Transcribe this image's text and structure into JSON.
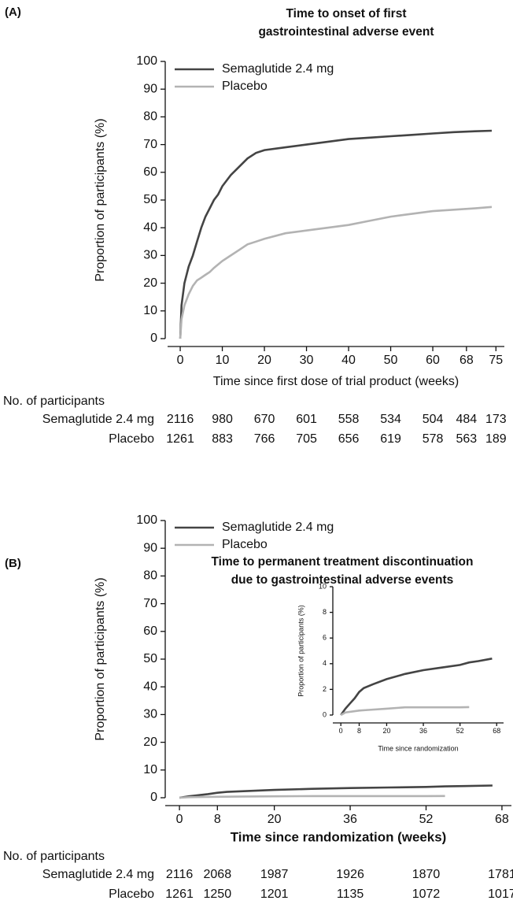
{
  "chart_data": [
    {
      "type": "line",
      "panel_label": "(A)",
      "title": [
        "Time to onset of first",
        "gastrointestinal adverse event"
      ],
      "xlabel": "Time since first dose of trial product (weeks)",
      "ylabel": "Proportion of participants (%)",
      "xlim": [
        -3,
        77
      ],
      "xticks": [
        0,
        10,
        20,
        30,
        40,
        50,
        60,
        68,
        75
      ],
      "ylim": [
        0,
        100
      ],
      "yticks": [
        0,
        10,
        20,
        30,
        40,
        50,
        60,
        70,
        80,
        90,
        100
      ],
      "legend": "upper left",
      "series": [
        {
          "name": "Semaglutide 2.4 mg",
          "color": "#444444",
          "x": [
            0,
            0.3,
            1,
            2,
            3,
            4,
            5,
            6,
            7,
            8,
            9,
            10,
            12,
            14,
            16,
            18,
            20,
            25,
            30,
            35,
            40,
            45,
            50,
            55,
            60,
            65,
            70,
            74
          ],
          "values": [
            0,
            12,
            20,
            26,
            30,
            35,
            40,
            44,
            47,
            50,
            52,
            55,
            59,
            62,
            65,
            67,
            68,
            69,
            70,
            71,
            72,
            72.5,
            73,
            73.5,
            74,
            74.5,
            74.8,
            75
          ]
        },
        {
          "name": "Placebo",
          "color": "#b3b3b3",
          "x": [
            0,
            0.3,
            1,
            2,
            3,
            4,
            5,
            6,
            7,
            8,
            10,
            12,
            14,
            16,
            18,
            20,
            25,
            30,
            35,
            40,
            45,
            50,
            55,
            60,
            65,
            70,
            74
          ],
          "values": [
            0,
            7,
            12,
            16,
            19,
            21,
            22,
            23,
            24,
            25.5,
            28,
            30,
            32,
            34,
            35,
            36,
            38,
            39,
            40,
            41,
            42.5,
            44,
            45,
            46,
            46.5,
            47,
            47.5
          ]
        }
      ],
      "risk_table": {
        "title": "No. of participants",
        "rows": [
          {
            "name": "Semaglutide 2.4 mg",
            "values": [
              2116,
              980,
              670,
              601,
              558,
              534,
              504,
              484,
              173
            ]
          },
          {
            "name": "Placebo",
            "values": [
              1261,
              883,
              766,
              705,
              656,
              619,
              578,
              563,
              189
            ]
          }
        ]
      }
    },
    {
      "type": "line",
      "panel_label": "(B)",
      "title": [
        "Time to permanent treatment discontinuation",
        "due to gastrointestinal adverse events"
      ],
      "xlabel": "Time since randomization (weeks)",
      "ylabel": "Proportion of participants (%)",
      "xlim": [
        -3,
        70
      ],
      "xticks": [
        0,
        8,
        20,
        36,
        52,
        68
      ],
      "ylim": [
        0,
        100
      ],
      "yticks": [
        0,
        10,
        20,
        30,
        40,
        50,
        60,
        70,
        80,
        90,
        100
      ],
      "legend": "upper left",
      "series": [
        {
          "name": "Semaglutide 2.4 mg",
          "color": "#444444",
          "x": [
            0,
            2,
            4,
            6,
            8,
            10,
            14,
            20,
            28,
            36,
            44,
            52,
            56,
            60,
            66
          ],
          "values": [
            0,
            0.5,
            0.9,
            1.3,
            1.8,
            2.1,
            2.4,
            2.8,
            3.2,
            3.5,
            3.7,
            3.9,
            4.1,
            4.2,
            4.4
          ]
        },
        {
          "name": "Placebo",
          "color": "#b3b3b3",
          "x": [
            0,
            2,
            8,
            12,
            20,
            28,
            36,
            52,
            56
          ],
          "values": [
            0,
            0.2,
            0.35,
            0.4,
            0.5,
            0.6,
            0.6,
            0.6,
            0.62
          ]
        }
      ],
      "inset": {
        "xlabel": "Time since randomization",
        "ylabel": "Proportion of participants (%)",
        "xlim": [
          -3.5,
          71
        ],
        "xticks": [
          0,
          8,
          20,
          36,
          52,
          68
        ],
        "ylim": [
          0,
          10
        ],
        "yticks": [
          0,
          2,
          4,
          6,
          8,
          10
        ]
      },
      "risk_table": {
        "title": "No. of participants",
        "rows": [
          {
            "name": "Semaglutide 2.4 mg",
            "values": [
              2116,
              2068,
              1987,
              1926,
              1870,
              1781
            ]
          },
          {
            "name": "Placebo",
            "values": [
              1261,
              1250,
              1201,
              1135,
              1072,
              1017
            ]
          }
        ]
      }
    }
  ]
}
